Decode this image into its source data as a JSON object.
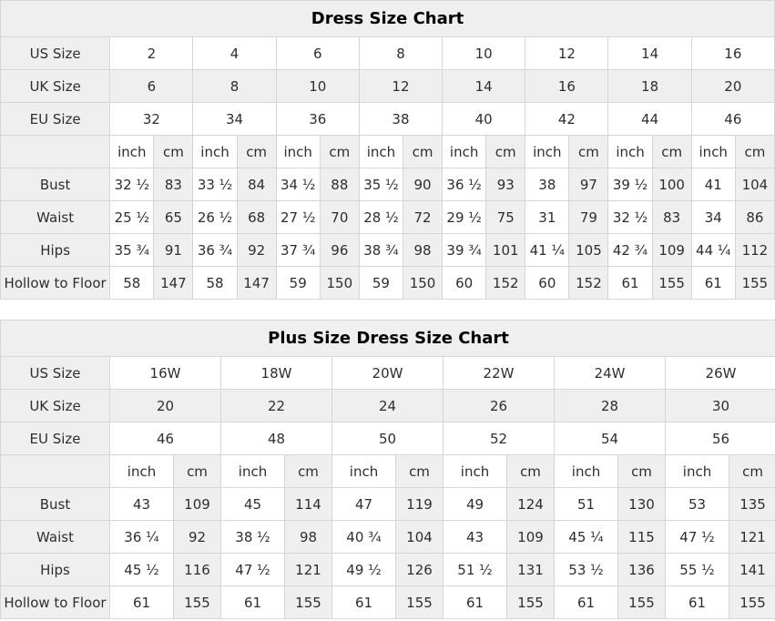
{
  "colors": {
    "cell_shaded": "#efefef",
    "cell_white": "#ffffff",
    "border": "#d6d6d6",
    "text": "#2e2e2e",
    "title_text": "#000000",
    "page_background": "#ffffff"
  },
  "chart_data": [
    {
      "type": "table",
      "title": "Dress Size Chart",
      "size_systems": [
        {
          "label": "US Size",
          "sizes": [
            "2",
            "4",
            "6",
            "8",
            "10",
            "12",
            "14",
            "16"
          ]
        },
        {
          "label": "UK Size",
          "sizes": [
            "6",
            "8",
            "10",
            "12",
            "14",
            "16",
            "18",
            "20"
          ]
        },
        {
          "label": "EU Size",
          "sizes": [
            "32",
            "34",
            "36",
            "38",
            "40",
            "42",
            "44",
            "46"
          ]
        }
      ],
      "unit_labels": [
        "inch",
        "cm"
      ],
      "measurements": [
        {
          "label": "Bust",
          "inch": [
            "32 ½",
            "33 ½",
            "34 ½",
            "35 ½",
            "36 ½",
            "38",
            "39 ½",
            "41"
          ],
          "cm": [
            "83",
            "84",
            "88",
            "90",
            "93",
            "97",
            "100",
            "104"
          ]
        },
        {
          "label": "Waist",
          "inch": [
            "25 ½",
            "26 ½",
            "27 ½",
            "28 ½",
            "29 ½",
            "31",
            "32 ½",
            "34"
          ],
          "cm": [
            "65",
            "68",
            "70",
            "72",
            "75",
            "79",
            "83",
            "86"
          ]
        },
        {
          "label": "Hips",
          "inch": [
            "35 ¾",
            "36 ¾",
            "37 ¾",
            "38 ¾",
            "39 ¾",
            "41 ¼",
            "42 ¾",
            "44 ¼"
          ],
          "cm": [
            "91",
            "92",
            "96",
            "98",
            "101",
            "105",
            "109",
            "112"
          ]
        },
        {
          "label": "Hollow to Floor",
          "inch": [
            "58",
            "58",
            "59",
            "59",
            "60",
            "60",
            "61",
            "61"
          ],
          "cm": [
            "147",
            "147",
            "150",
            "150",
            "152",
            "152",
            "155",
            "155"
          ]
        }
      ],
      "column_widths": {
        "label": 120,
        "inch": 48,
        "cm": 43
      }
    },
    {
      "type": "table",
      "title": "Plus Size Dress Size Chart",
      "size_systems": [
        {
          "label": "US Size",
          "sizes": [
            "16W",
            "18W",
            "20W",
            "22W",
            "24W",
            "26W"
          ]
        },
        {
          "label": "UK Size",
          "sizes": [
            "20",
            "22",
            "24",
            "26",
            "28",
            "30"
          ]
        },
        {
          "label": "EU Size",
          "sizes": [
            "46",
            "48",
            "50",
            "52",
            "54",
            "56"
          ]
        }
      ],
      "unit_labels": [
        "inch",
        "cm"
      ],
      "measurements": [
        {
          "label": "Bust",
          "inch": [
            "43",
            "45",
            "47",
            "49",
            "51",
            "53"
          ],
          "cm": [
            "109",
            "114",
            "119",
            "124",
            "130",
            "135"
          ]
        },
        {
          "label": "Waist",
          "inch": [
            "36 ¼",
            "38 ½",
            "40 ¾",
            "43",
            "45 ¼",
            "47 ½"
          ],
          "cm": [
            "92",
            "98",
            "104",
            "109",
            "115",
            "121"
          ]
        },
        {
          "label": "Hips",
          "inch": [
            "45 ½",
            "47 ½",
            "49 ½",
            "51 ½",
            "53 ½",
            "55 ½"
          ],
          "cm": [
            "116",
            "121",
            "126",
            "131",
            "136",
            "141"
          ]
        },
        {
          "label": "Hollow to Floor",
          "inch": [
            "61",
            "61",
            "61",
            "61",
            "61",
            "61"
          ],
          "cm": [
            "155",
            "155",
            "155",
            "155",
            "155",
            "155"
          ]
        }
      ],
      "column_widths": {
        "label": 120,
        "inch": 70,
        "cm": 52
      }
    }
  ]
}
